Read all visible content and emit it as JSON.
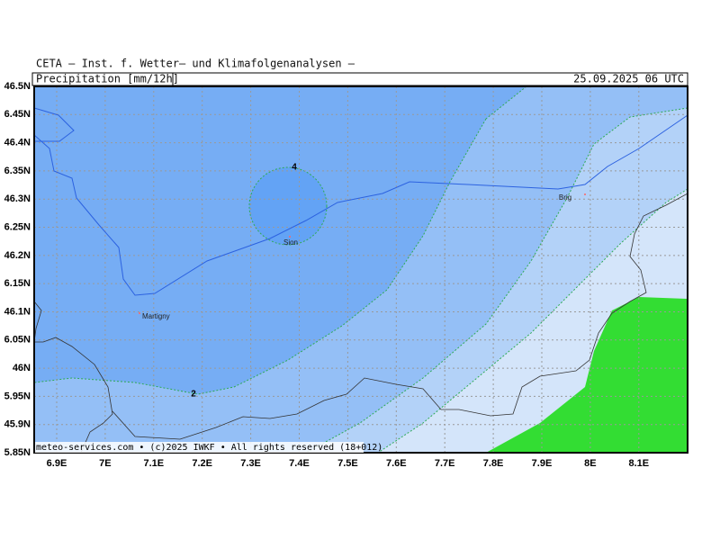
{
  "header": {
    "source": "CETA — Inst. f. Wetter— und Klimafolgenanalysen —",
    "title": "Precipitation [mm/12h]",
    "valid_time": "25.09.2025 06 UTC"
  },
  "y_labels": [
    "46.5N",
    "6.45N",
    "46.4N",
    "6.35N",
    "46.3N",
    "6.25N",
    "46.2N",
    "6.15N",
    "46.1N",
    "6.05N",
    "46N",
    "5.95N",
    "45.9N",
    "5.85N"
  ],
  "x_labels": [
    "6.9E",
    "7E",
    "7.1E",
    "7.2E",
    "7.3E",
    "7.4E",
    "7.5E",
    "7.6E",
    "7.7E",
    "7.8E",
    "7.9E",
    "8E",
    "8.1E"
  ],
  "places": [
    "Sion",
    "Martigny",
    "Brig"
  ],
  "contour_labels": [
    "4",
    "2"
  ],
  "footer": "meteo-services.com • (c)2025 IWKF • All rights reserved (18+012)"
}
